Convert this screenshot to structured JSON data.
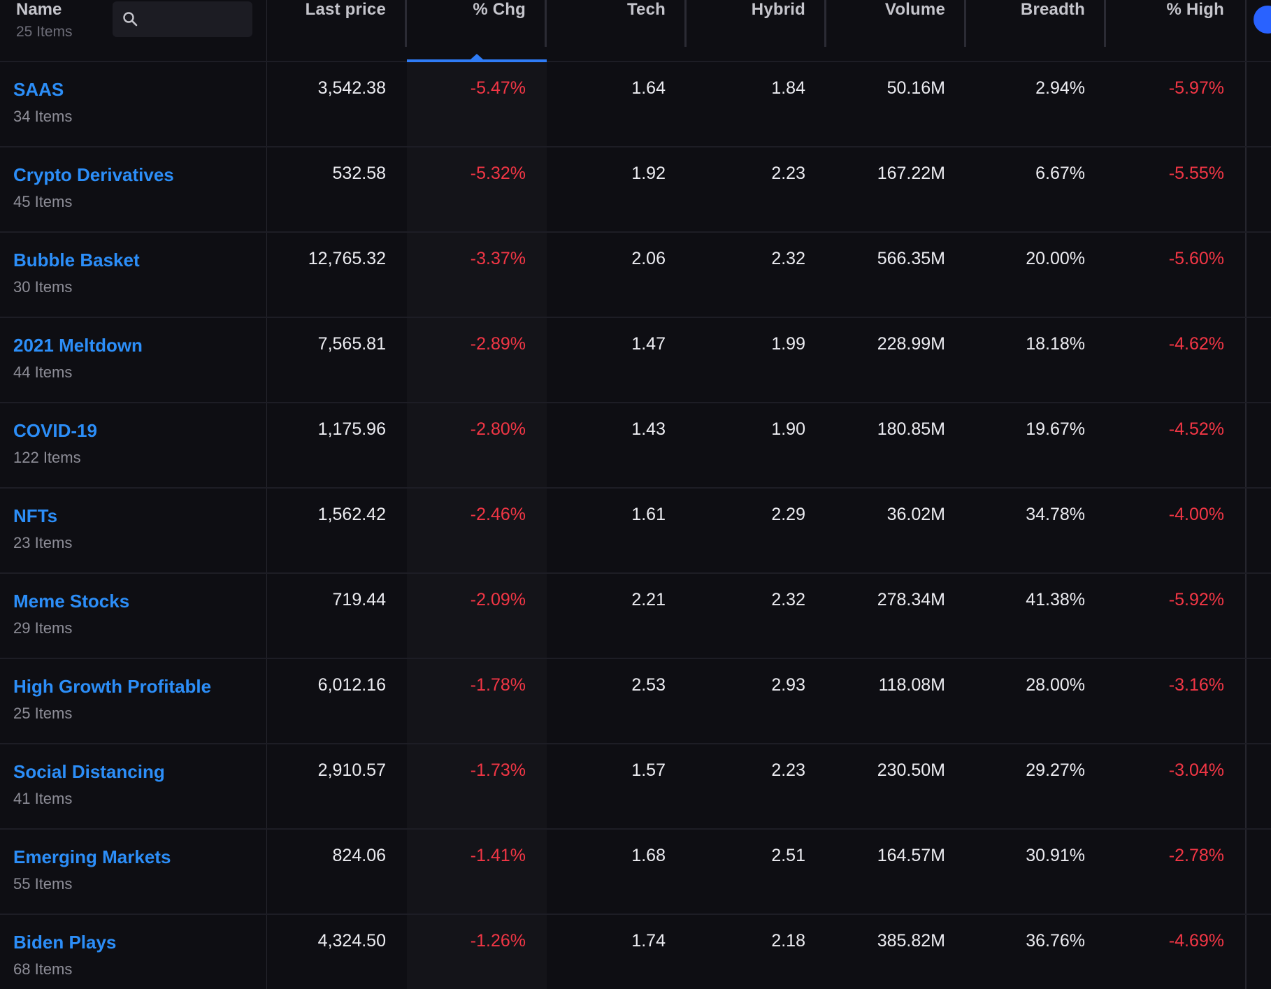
{
  "header": {
    "name_label": "Name",
    "items_count": "25 Items",
    "search": {
      "placeholder": "",
      "value": "",
      "icon": "search-icon"
    },
    "columns": [
      "Last price",
      "% Chg",
      "Tech",
      "Hybrid",
      "Volume",
      "Breadth",
      "% High"
    ],
    "sorted_column": "% Chg"
  },
  "colors": {
    "background": "#0e0e13",
    "link": "#2c8ef8",
    "negative": "#f23645",
    "accent": "#2f7cf6"
  },
  "rows": [
    {
      "name": "SAAS",
      "items": "34 Items",
      "last_price": "3,542.38",
      "chg": "-5.47%",
      "tech": "1.64",
      "hybrid": "1.84",
      "volume": "50.16M",
      "breadth": "2.94%",
      "high": "-5.97%"
    },
    {
      "name": "Crypto Derivatives",
      "items": "45 Items",
      "last_price": "532.58",
      "chg": "-5.32%",
      "tech": "1.92",
      "hybrid": "2.23",
      "volume": "167.22M",
      "breadth": "6.67%",
      "high": "-5.55%"
    },
    {
      "name": "Bubble Basket",
      "items": "30 Items",
      "last_price": "12,765.32",
      "chg": "-3.37%",
      "tech": "2.06",
      "hybrid": "2.32",
      "volume": "566.35M",
      "breadth": "20.00%",
      "high": "-5.60%"
    },
    {
      "name": "2021 Meltdown",
      "items": "44 Items",
      "last_price": "7,565.81",
      "chg": "-2.89%",
      "tech": "1.47",
      "hybrid": "1.99",
      "volume": "228.99M",
      "breadth": "18.18%",
      "high": "-4.62%"
    },
    {
      "name": "COVID-19",
      "items": "122 Items",
      "last_price": "1,175.96",
      "chg": "-2.80%",
      "tech": "1.43",
      "hybrid": "1.90",
      "volume": "180.85M",
      "breadth": "19.67%",
      "high": "-4.52%"
    },
    {
      "name": "NFTs",
      "items": "23 Items",
      "last_price": "1,562.42",
      "chg": "-2.46%",
      "tech": "1.61",
      "hybrid": "2.29",
      "volume": "36.02M",
      "breadth": "34.78%",
      "high": "-4.00%"
    },
    {
      "name": "Meme Stocks",
      "items": "29 Items",
      "last_price": "719.44",
      "chg": "-2.09%",
      "tech": "2.21",
      "hybrid": "2.32",
      "volume": "278.34M",
      "breadth": "41.38%",
      "high": "-5.92%"
    },
    {
      "name": "High Growth Profitable",
      "items": "25 Items",
      "last_price": "6,012.16",
      "chg": "-1.78%",
      "tech": "2.53",
      "hybrid": "2.93",
      "volume": "118.08M",
      "breadth": "28.00%",
      "high": "-3.16%"
    },
    {
      "name": "Social Distancing",
      "items": "41 Items",
      "last_price": "2,910.57",
      "chg": "-1.73%",
      "tech": "1.57",
      "hybrid": "2.23",
      "volume": "230.50M",
      "breadth": "29.27%",
      "high": "-3.04%"
    },
    {
      "name": "Emerging Markets",
      "items": "55 Items",
      "last_price": "824.06",
      "chg": "-1.41%",
      "tech": "1.68",
      "hybrid": "2.51",
      "volume": "164.57M",
      "breadth": "30.91%",
      "high": "-2.78%"
    },
    {
      "name": "Biden Plays",
      "items": "68 Items",
      "last_price": "4,324.50",
      "chg": "-1.26%",
      "tech": "1.74",
      "hybrid": "2.18",
      "volume": "385.82M",
      "breadth": "36.76%",
      "high": "-4.69%"
    }
  ]
}
